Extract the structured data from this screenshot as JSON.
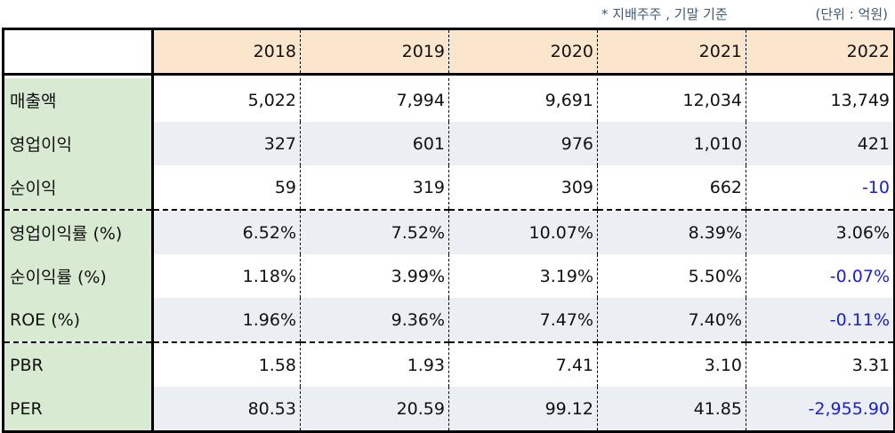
{
  "notes": {
    "basis": "* 지배주주 , 기말 기준",
    "unit": "(단위 : 억원)"
  },
  "table": {
    "corner": "",
    "years": [
      "2018",
      "2019",
      "2020",
      "2021",
      "2022"
    ],
    "rows": [
      {
        "label": "매출액",
        "values": [
          "5,022",
          "7,994",
          "9,691",
          "12,034",
          "13,749"
        ]
      },
      {
        "label": "영업이익",
        "values": [
          "327",
          "601",
          "976",
          "1,010",
          "421"
        ]
      },
      {
        "label": "순이익",
        "values": [
          "59",
          "319",
          "309",
          "662",
          "-10"
        ]
      },
      {
        "label": "영업이익률 (%)",
        "values": [
          "6.52%",
          "7.52%",
          "10.07%",
          "8.39%",
          "3.06%"
        ]
      },
      {
        "label": "순이익률 (%)",
        "values": [
          "1.18%",
          "3.99%",
          "3.19%",
          "5.50%",
          "-0.07%"
        ]
      },
      {
        "label": "ROE (%)",
        "values": [
          "1.96%",
          "9.36%",
          "7.47%",
          "7.40%",
          "-0.11%"
        ]
      },
      {
        "label": "PBR",
        "values": [
          "1.58",
          "1.93",
          "7.41",
          "3.10",
          "3.31"
        ]
      },
      {
        "label": "PER",
        "values": [
          "80.53",
          "20.59",
          "99.12",
          "41.85",
          "-2,955.90"
        ]
      }
    ],
    "colors": {
      "header_bg": "#fce5cd",
      "label_bg": "#d9ead3",
      "stripe_bg": "#ebeef2",
      "negative_text": "#1a21d1",
      "note_text": "#3d5a7a"
    }
  }
}
